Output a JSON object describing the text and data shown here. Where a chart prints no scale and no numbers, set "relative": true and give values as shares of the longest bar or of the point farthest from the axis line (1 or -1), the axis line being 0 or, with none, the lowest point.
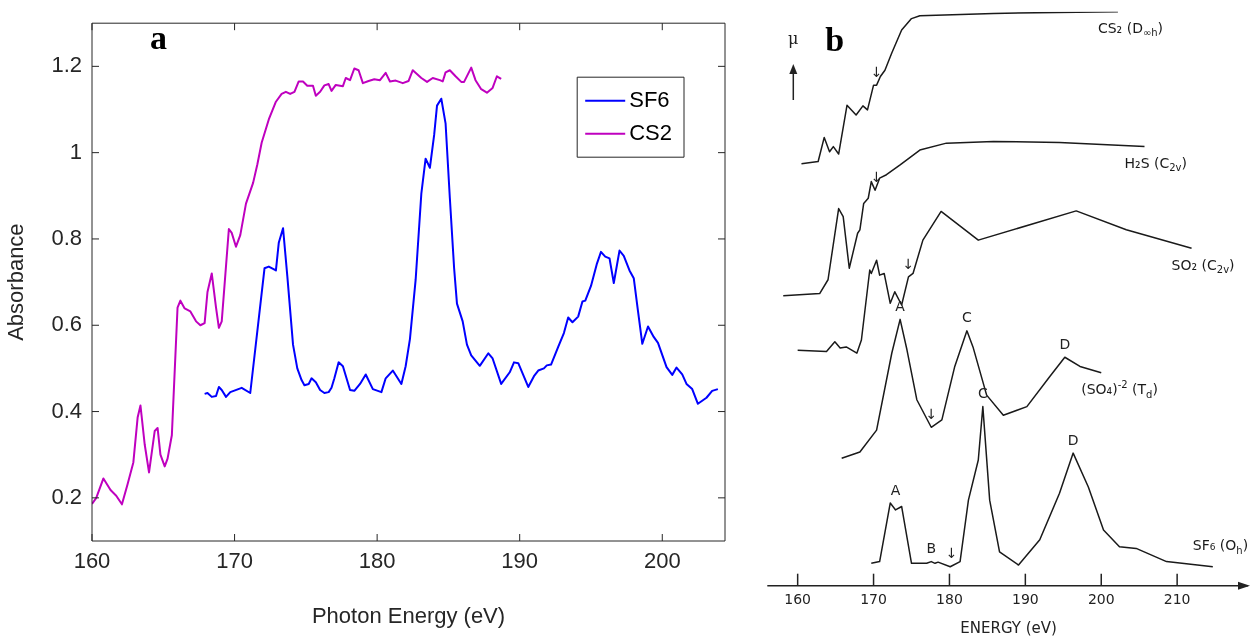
{
  "chart_data": [
    {
      "type": "line",
      "xlabel": "Photon Energy (eV)",
      "ylabel": "Absorbance",
      "xlim": [
        160,
        204.4
      ],
      "ylim": [
        0.1,
        1.3
      ],
      "xticks": [
        160,
        170,
        180,
        190,
        200
      ],
      "yticks": [
        0.2,
        0.4,
        0.6,
        0.8,
        1,
        1.2
      ],
      "legend": "top right",
      "annotations": [
        "a"
      ],
      "series": [
        {
          "name": "SF6",
          "color": "#0000ff",
          "x": [
            167.9,
            168.1,
            168.4,
            168.7,
            168.9,
            169.1,
            169.4,
            169.7,
            170.5,
            171.1,
            172.1,
            172.4,
            172.9,
            173.1,
            173.4,
            173.7,
            174.1,
            174.4,
            174.7,
            174.9,
            175.2,
            175.4,
            175.7,
            176,
            176.3,
            176.6,
            176.8,
            177,
            177.3,
            177.6,
            178.1,
            178.4,
            178.8,
            179.2,
            179.7,
            180.3,
            180.6,
            181.1,
            181.7,
            182,
            182.3,
            182.7,
            183.1,
            183.4,
            183.7,
            184,
            184.2,
            184.5,
            184.8,
            185.1,
            185.4,
            185.6,
            186,
            186.3,
            186.6,
            187.2,
            187.8,
            188.1,
            188.7,
            189.3,
            189.6,
            189.9,
            190.6,
            191,
            191.3,
            191.7,
            191.9,
            192.2,
            192.7,
            193.1,
            193.4,
            193.7,
            194.1,
            194.4,
            194.6,
            195,
            195.4,
            195.7,
            196,
            196.3,
            196.6,
            197,
            197.3,
            197.7,
            198,
            198.3,
            198.6,
            199,
            199.4,
            199.7,
            200.3,
            200.7,
            201,
            201.4,
            201.7,
            202.1,
            202.5,
            203.1,
            203.5,
            203.9
          ],
          "values": [
            0.441,
            0.443,
            0.434,
            0.436,
            0.457,
            0.45,
            0.434,
            0.445,
            0.455,
            0.443,
            0.732,
            0.736,
            0.727,
            0.791,
            0.825,
            0.714,
            0.555,
            0.5,
            0.473,
            0.461,
            0.464,
            0.477,
            0.468,
            0.45,
            0.443,
            0.445,
            0.455,
            0.477,
            0.514,
            0.505,
            0.45,
            0.448,
            0.464,
            0.486,
            0.452,
            0.445,
            0.477,
            0.495,
            0.464,
            0.505,
            0.568,
            0.705,
            0.905,
            0.986,
            0.965,
            1.041,
            1.109,
            1.125,
            1.068,
            0.895,
            0.732,
            0.65,
            0.609,
            0.555,
            0.53,
            0.506,
            0.535,
            0.523,
            0.464,
            0.491,
            0.514,
            0.512,
            0.457,
            0.482,
            0.495,
            0.5,
            0.507,
            0.509,
            0.55,
            0.582,
            0.618,
            0.607,
            0.62,
            0.655,
            0.657,
            0.691,
            0.741,
            0.77,
            0.759,
            0.755,
            0.698,
            0.773,
            0.761,
            0.727,
            0.709,
            0.632,
            0.557,
            0.597,
            0.573,
            0.559,
            0.503,
            0.485,
            0.502,
            0.486,
            0.464,
            0.452,
            0.418,
            0.432,
            0.448,
            0.452
          ]
        },
        {
          "name": "CS2",
          "color": "#bf00bf",
          "x": [
            160,
            160.3,
            160.8,
            161.3,
            161.7,
            162.1,
            162.5,
            162.9,
            163.2,
            163.4,
            163.7,
            164,
            164.4,
            164.6,
            164.8,
            165.1,
            165.3,
            165.6,
            166,
            166.2,
            166.5,
            166.9,
            167.3,
            167.6,
            167.9,
            168.1,
            168.4,
            168.7,
            168.9,
            169.1,
            169.6,
            169.8,
            170.1,
            170.4,
            170.8,
            171.3,
            171.6,
            171.9,
            172.4,
            172.9,
            173.3,
            173.6,
            173.9,
            174.2,
            174.5,
            174.8,
            175.1,
            175.5,
            175.7,
            176,
            176.3,
            176.6,
            176.8,
            177.1,
            177.6,
            177.8,
            178.1,
            178.4,
            178.7,
            179,
            179.4,
            179.8,
            180.2,
            180.6,
            180.9,
            181.3,
            181.8,
            182.2,
            182.5,
            183.1,
            183.5,
            183.9,
            184.4,
            184.6,
            184.8,
            185.1,
            185.5,
            185.9,
            186.1,
            186.6,
            186.9,
            187.3,
            187.7,
            188.1,
            188.4,
            188.7
          ],
          "values": [
            0.186,
            0.2,
            0.245,
            0.218,
            0.205,
            0.185,
            0.232,
            0.282,
            0.386,
            0.414,
            0.323,
            0.259,
            0.355,
            0.362,
            0.3,
            0.273,
            0.291,
            0.345,
            0.641,
            0.657,
            0.639,
            0.632,
            0.609,
            0.6,
            0.605,
            0.677,
            0.72,
            0.641,
            0.594,
            0.609,
            0.823,
            0.814,
            0.782,
            0.809,
            0.882,
            0.93,
            0.973,
            1.023,
            1.077,
            1.118,
            1.136,
            1.141,
            1.136,
            1.141,
            1.165,
            1.165,
            1.155,
            1.155,
            1.132,
            1.141,
            1.156,
            1.159,
            1.143,
            1.157,
            1.154,
            1.173,
            1.168,
            1.195,
            1.191,
            1.161,
            1.166,
            1.17,
            1.168,
            1.185,
            1.165,
            1.167,
            1.161,
            1.166,
            1.191,
            1.173,
            1.164,
            1.173,
            1.168,
            1.165,
            1.186,
            1.191,
            1.177,
            1.164,
            1.164,
            1.197,
            1.168,
            1.147,
            1.139,
            1.15,
            1.177,
            1.171
          ]
        }
      ]
    },
    {
      "type": "line",
      "relative": true,
      "xlabel": "ENERGY (eV)",
      "ylabel": "μ",
      "xlim": [
        156,
        219.6
      ],
      "xticks": [
        160,
        170,
        180,
        190,
        200,
        210
      ],
      "annotations": [
        "b",
        {
          "text": "↓",
          "x": 170.4,
          "y": 0.872
        },
        {
          "text": "↓",
          "x": 170.4,
          "y": 0.689
        },
        {
          "text": "↓",
          "x": 174.6,
          "y": 0.538
        },
        {
          "text": "A",
          "x": 173.5,
          "y": 0.464
        },
        {
          "text": "C",
          "x": 182.3,
          "y": 0.444
        },
        {
          "text": "D",
          "x": 195.2,
          "y": 0.398
        },
        {
          "text": "↓",
          "x": 177.6,
          "y": 0.276
        },
        {
          "text": "A",
          "x": 172.9,
          "y": 0.144
        },
        {
          "text": "B",
          "x": 177.6,
          "y": 0.042
        },
        {
          "text": "↓",
          "x": 180.3,
          "y": 0.033
        },
        {
          "text": "C",
          "x": 184.4,
          "y": 0.312
        },
        {
          "text": "D",
          "x": 196.3,
          "y": 0.231
        }
      ],
      "series": [
        {
          "name": "CS₂ (D$_{∞h}$)",
          "color": "#1a1a1a",
          "x": [
            160.5,
            162.7,
            163.5,
            164.2,
            164.7,
            165.4,
            166.5,
            167.7,
            168.6,
            169.2,
            170,
            170.4,
            170.9,
            171.5,
            172.4,
            173.7,
            175,
            176.1,
            185.8,
            202.2
          ],
          "values": [
            0.735,
            0.739,
            0.781,
            0.756,
            0.765,
            0.752,
            0.837,
            0.82,
            0.836,
            0.829,
            0.872,
            0.872,
            0.887,
            0.898,
            0.928,
            0.968,
            0.988,
            0.993,
            0.997,
            1
          ]
        },
        {
          "name": "H₂S (C$_{2v}$)",
          "color": "#1a1a1a",
          "x": [
            158.1,
            162.9,
            164,
            165.4,
            166,
            166.8,
            167.9,
            168.2,
            168.7,
            169.3,
            169.7,
            170.2,
            170.8,
            171.7,
            173.5,
            176.1,
            179.6,
            185.8,
            194.5,
            205.7
          ],
          "values": [
            0.505,
            0.509,
            0.533,
            0.657,
            0.643,
            0.553,
            0.614,
            0.62,
            0.666,
            0.675,
            0.704,
            0.689,
            0.71,
            0.716,
            0.733,
            0.759,
            0.771,
            0.774,
            0.772,
            0.765
          ]
        },
        {
          "name": "SO₂ (C$_{2v}$)",
          "color": "#1a1a1a",
          "x": [
            160,
            163.8,
            164.9,
            165.6,
            166.4,
            167.8,
            168.4,
            169.5,
            169.7,
            170.4,
            170.8,
            171.4,
            172.2,
            172.8,
            173.7,
            174.6,
            175.2,
            176.5,
            178.9,
            183.8,
            196.7,
            203.3,
            211.9
          ],
          "values": [
            0.41,
            0.408,
            0.425,
            0.414,
            0.416,
            0.405,
            0.428,
            0.55,
            0.544,
            0.567,
            0.541,
            0.544,
            0.492,
            0.512,
            0.489,
            0.538,
            0.544,
            0.602,
            0.652,
            0.602,
            0.653,
            0.62,
            0.588
          ]
        },
        {
          "name": "(SO₄)$^{-2}$ (T$_{d}$)",
          "color": "#1a1a1a",
          "x": [
            165.8,
            168.2,
            170.4,
            172.4,
            173.5,
            174.4,
            175.7,
            177.6,
            179,
            180.7,
            182.3,
            183.1,
            184.9,
            187.1,
            190.2,
            193.2,
            195.2,
            197.2,
            200
          ],
          "values": [
            0.222,
            0.233,
            0.271,
            0.405,
            0.464,
            0.411,
            0.324,
            0.276,
            0.289,
            0.382,
            0.444,
            0.416,
            0.332,
            0.297,
            0.312,
            0.364,
            0.398,
            0.382,
            0.371
          ]
        },
        {
          "name": "SF₆ (O$_{h}$)",
          "color": "#1a1a1a",
          "x": [
            169.7,
            170.8,
            172.2,
            172.9,
            173.7,
            175,
            177,
            177.6,
            178.1,
            178.5,
            180.1,
            181.4,
            182.5,
            183.8,
            184.4,
            185.3,
            186.6,
            189.1,
            191.9,
            194.5,
            196.3,
            198.3,
            200.3,
            202.4,
            204.6,
            208.6,
            214.7
          ],
          "values": [
            0.039,
            0.042,
            0.144,
            0.132,
            0.138,
            0.039,
            0.039,
            0.042,
            0.039,
            0.041,
            0.033,
            0.042,
            0.149,
            0.219,
            0.312,
            0.149,
            0.059,
            0.036,
            0.08,
            0.161,
            0.231,
            0.172,
            0.097,
            0.068,
            0.065,
            0.042,
            0.033
          ]
        }
      ]
    }
  ]
}
